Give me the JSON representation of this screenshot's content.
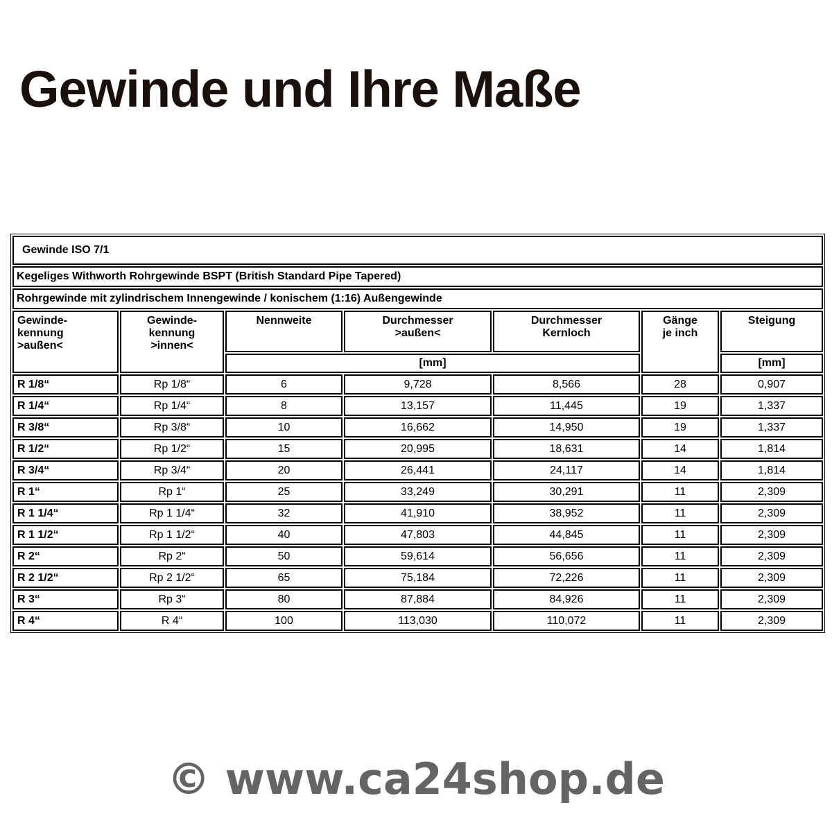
{
  "page": {
    "title": "Gewinde und Ihre Maße",
    "watermark": "© www.ca24shop.de"
  },
  "colors": {
    "title_text": "#1a110c",
    "table_border": "#000000",
    "table_text": "#000000",
    "watermark_gray": "#646464",
    "background": "#ffffff"
  },
  "table": {
    "banners": [
      "Gewinde ISO 7/1",
      "Kegeliges Withworth Rohrgewinde BSPT (British Standard Pipe Tapered)",
      "Rohrgewinde mit zylindrischem Innengewinde / konischem (1:16) Außengewinde"
    ],
    "header": {
      "kennung_aussen": [
        "Gewinde-",
        "kennung",
        ">außen<"
      ],
      "kennung_innen": [
        "Gewinde-",
        "kennung",
        ">innen<"
      ],
      "nennweite": "Nennweite",
      "durchmesser_aussen": [
        "Durchmesser",
        ">außen<"
      ],
      "durchmesser_kernloch": [
        "Durchmesser",
        "Kernloch"
      ],
      "gaenge_je_inch": [
        "Gänge",
        "je inch"
      ],
      "steigung": "Steigung",
      "unit_mm": "[mm]"
    },
    "col_keys": [
      "kennung-aussen",
      "kennung-innen",
      "nennweite",
      "durchmesser-aussen",
      "durchmesser-kernloch",
      "gaenge-je-inch",
      "steigung"
    ],
    "rows": [
      [
        "R 1/8“",
        "Rp 1/8“",
        "6",
        "9,728",
        "8,566",
        "28",
        "0,907"
      ],
      [
        "R 1/4“",
        "Rp 1/4“",
        "8",
        "13,157",
        "11,445",
        "19",
        "1,337"
      ],
      [
        "R 3/8“",
        "Rp 3/8“",
        "10",
        "16,662",
        "14,950",
        "19",
        "1,337"
      ],
      [
        "R 1/2“",
        "Rp 1/2“",
        "15",
        "20,995",
        "18,631",
        "14",
        "1,814"
      ],
      [
        "R 3/4“",
        "Rp 3/4“",
        "20",
        "26,441",
        "24,117",
        "14",
        "1,814"
      ],
      [
        "R 1“",
        "Rp 1“",
        "25",
        "33,249",
        "30,291",
        "11",
        "2,309"
      ],
      [
        "R 1 1/4“",
        "Rp 1 1/4“",
        "32",
        "41,910",
        "38,952",
        "11",
        "2,309"
      ],
      [
        "R 1 1/2“",
        "Rp 1 1/2“",
        "40",
        "47,803",
        "44,845",
        "11",
        "2,309"
      ],
      [
        "R 2“",
        "Rp 2“",
        "50",
        "59,614",
        "56,656",
        "11",
        "2,309"
      ],
      [
        "R 2 1/2“",
        "Rp 2 1/2“",
        "65",
        "75,184",
        "72,226",
        "11",
        "2,309"
      ],
      [
        "R 3“",
        "Rp 3“",
        "80",
        "87,884",
        "84,926",
        "11",
        "2,309"
      ],
      [
        "R 4“",
        "R 4“",
        "100",
        "113,030",
        "110,072",
        "11",
        "2,309"
      ]
    ]
  }
}
